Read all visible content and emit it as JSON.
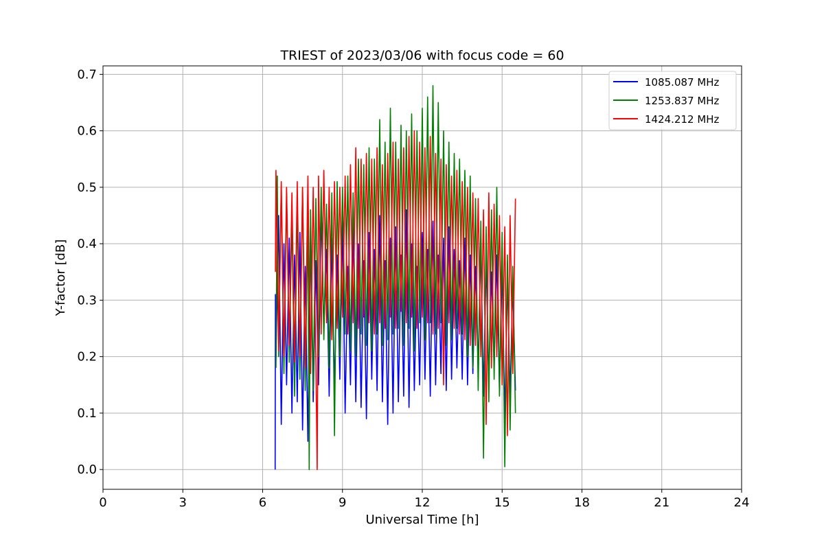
{
  "chart_data": {
    "type": "line",
    "title": "TRIEST of 2023/03/06 with focus code = 60",
    "xlabel": "Universal Time [h]",
    "ylabel": "Y-factor [dB]",
    "xlim": [
      0,
      24
    ],
    "ylim": [
      -0.035,
      0.715
    ],
    "xticks": [
      0,
      3,
      6,
      9,
      12,
      15,
      18,
      21,
      24
    ],
    "xtick_labels": [
      "0",
      "3",
      "6",
      "9",
      "12",
      "15",
      "18",
      "21",
      "24"
    ],
    "yticks": [
      0.0,
      0.1,
      0.2,
      0.3,
      0.4,
      0.5,
      0.6,
      0.7
    ],
    "ytick_labels": [
      "0.0",
      "0.1",
      "0.2",
      "0.3",
      "0.4",
      "0.5",
      "0.6",
      "0.7"
    ],
    "grid": true,
    "legend_position": "top-right",
    "series": [
      {
        "name": "1085.087 MHz",
        "color": "#0000ff",
        "x": [
          6.47,
          6.48,
          6.5,
          6.6,
          6.7,
          6.8,
          6.9,
          7.0,
          7.1,
          7.2,
          7.3,
          7.4,
          7.5,
          7.6,
          7.7,
          7.8,
          7.9,
          8.0,
          8.1,
          8.2,
          8.3,
          8.4,
          8.5,
          8.6,
          8.7,
          8.8,
          8.9,
          9.0,
          9.1,
          9.2,
          9.3,
          9.4,
          9.5,
          9.6,
          9.7,
          9.8,
          9.9,
          10.0,
          10.1,
          10.2,
          10.3,
          10.4,
          10.5,
          10.6,
          10.7,
          10.8,
          10.9,
          11.0,
          11.1,
          11.2,
          11.3,
          11.4,
          11.5,
          11.6,
          11.7,
          11.8,
          11.9,
          12.0,
          12.1,
          12.2,
          12.3,
          12.4,
          12.5,
          12.6,
          12.7,
          12.8,
          12.9,
          13.0,
          13.1,
          13.2,
          13.3,
          13.4,
          13.5,
          13.6,
          13.7,
          13.8,
          13.9,
          14.0,
          14.1,
          14.2,
          14.3,
          14.4,
          14.5,
          14.6,
          14.7,
          14.8,
          14.9,
          15.0,
          15.1,
          15.2,
          15.3,
          15.4,
          15.5
        ],
        "y": [
          0.0,
          0.31,
          0.2,
          0.45,
          0.08,
          0.4,
          0.15,
          0.41,
          0.1,
          0.38,
          0.12,
          0.42,
          0.07,
          0.36,
          0.05,
          0.43,
          0.12,
          0.37,
          0.15,
          0.46,
          0.25,
          0.39,
          0.13,
          0.41,
          0.14,
          0.38,
          0.16,
          0.44,
          0.1,
          0.36,
          0.15,
          0.43,
          0.12,
          0.4,
          0.11,
          0.37,
          0.09,
          0.42,
          0.16,
          0.39,
          0.14,
          0.45,
          0.12,
          0.37,
          0.08,
          0.41,
          0.1,
          0.43,
          0.12,
          0.38,
          0.13,
          0.46,
          0.11,
          0.4,
          0.14,
          0.36,
          0.15,
          0.42,
          0.16,
          0.39,
          0.13,
          0.44,
          0.15,
          0.38,
          0.17,
          0.41,
          0.14,
          0.43,
          0.16,
          0.39,
          0.18,
          0.37,
          0.16,
          0.41,
          0.15,
          0.38,
          0.17,
          0.36,
          0.18,
          0.4,
          0.13,
          0.37,
          0.16,
          0.35,
          0.18,
          0.38,
          0.14,
          0.36,
          0.09,
          0.34,
          0.13,
          0.33,
          0.14
        ]
      },
      {
        "name": "1253.837 MHz",
        "color": "#008000",
        "x": [
          6.5,
          6.55,
          6.6,
          6.7,
          6.8,
          6.9,
          7.0,
          7.1,
          7.2,
          7.3,
          7.4,
          7.5,
          7.6,
          7.7,
          7.75,
          7.8,
          7.9,
          8.0,
          8.1,
          8.2,
          8.3,
          8.4,
          8.5,
          8.6,
          8.7,
          8.8,
          8.9,
          9.0,
          9.1,
          9.2,
          9.3,
          9.4,
          9.5,
          9.6,
          9.7,
          9.8,
          9.9,
          10.0,
          10.1,
          10.2,
          10.3,
          10.4,
          10.5,
          10.6,
          10.7,
          10.8,
          10.9,
          11.0,
          11.1,
          11.2,
          11.3,
          11.4,
          11.5,
          11.6,
          11.7,
          11.8,
          11.9,
          12.0,
          12.1,
          12.2,
          12.3,
          12.4,
          12.5,
          12.6,
          12.7,
          12.8,
          12.9,
          13.0,
          13.1,
          13.2,
          13.3,
          13.4,
          13.5,
          13.6,
          13.7,
          13.8,
          13.9,
          14.0,
          14.1,
          14.2,
          14.3,
          14.4,
          14.5,
          14.6,
          14.7,
          14.8,
          14.9,
          15.0,
          15.1,
          15.2,
          15.3,
          15.4,
          15.5
        ],
        "y": [
          0.18,
          0.52,
          0.2,
          0.5,
          0.17,
          0.49,
          0.19,
          0.45,
          0.13,
          0.47,
          0.16,
          0.5,
          0.14,
          0.45,
          0.0,
          0.46,
          0.14,
          0.48,
          0.2,
          0.5,
          0.23,
          0.47,
          0.18,
          0.49,
          0.06,
          0.51,
          0.2,
          0.5,
          0.24,
          0.52,
          0.21,
          0.49,
          0.2,
          0.55,
          0.24,
          0.54,
          0.22,
          0.57,
          0.21,
          0.55,
          0.24,
          0.62,
          0.22,
          0.58,
          0.23,
          0.64,
          0.24,
          0.58,
          0.25,
          0.61,
          0.22,
          0.6,
          0.25,
          0.63,
          0.21,
          0.6,
          0.26,
          0.64,
          0.23,
          0.66,
          0.26,
          0.68,
          0.24,
          0.65,
          0.26,
          0.6,
          0.22,
          0.58,
          0.23,
          0.56,
          0.25,
          0.55,
          0.24,
          0.53,
          0.2,
          0.52,
          0.18,
          0.48,
          0.14,
          0.44,
          0.02,
          0.43,
          0.12,
          0.46,
          0.16,
          0.5,
          0.13,
          0.42,
          0.005,
          0.38,
          0.07,
          0.36,
          0.1
        ]
      },
      {
        "name": "1424.212 MHz",
        "color": "#ff0000",
        "x": [
          6.48,
          6.5,
          6.6,
          6.7,
          6.8,
          6.9,
          7.0,
          7.1,
          7.2,
          7.3,
          7.4,
          7.5,
          7.6,
          7.7,
          7.8,
          7.9,
          8.0,
          8.05,
          8.1,
          8.2,
          8.3,
          8.4,
          8.5,
          8.6,
          8.7,
          8.8,
          8.9,
          9.0,
          9.1,
          9.2,
          9.3,
          9.4,
          9.5,
          9.6,
          9.7,
          9.8,
          9.9,
          10.0,
          10.1,
          10.2,
          10.3,
          10.4,
          10.5,
          10.6,
          10.7,
          10.8,
          10.9,
          11.0,
          11.1,
          11.2,
          11.3,
          11.4,
          11.5,
          11.6,
          11.7,
          11.8,
          11.9,
          12.0,
          12.1,
          12.2,
          12.3,
          12.4,
          12.5,
          12.6,
          12.7,
          12.8,
          12.9,
          13.0,
          13.1,
          13.2,
          13.3,
          13.4,
          13.5,
          13.6,
          13.7,
          13.8,
          13.9,
          14.0,
          14.1,
          14.2,
          14.3,
          14.4,
          14.5,
          14.6,
          14.7,
          14.8,
          14.9,
          15.0,
          15.1,
          15.2,
          15.3,
          15.4,
          15.5
        ],
        "y": [
          0.35,
          0.53,
          0.21,
          0.51,
          0.2,
          0.5,
          0.22,
          0.49,
          0.19,
          0.51,
          0.2,
          0.5,
          0.18,
          0.52,
          0.17,
          0.5,
          0.19,
          0.0,
          0.52,
          0.24,
          0.53,
          0.26,
          0.5,
          0.23,
          0.51,
          0.25,
          0.5,
          0.27,
          0.52,
          0.24,
          0.54,
          0.26,
          0.57,
          0.25,
          0.55,
          0.27,
          0.56,
          0.26,
          0.55,
          0.24,
          0.57,
          0.26,
          0.54,
          0.25,
          0.56,
          0.27,
          0.58,
          0.25,
          0.55,
          0.28,
          0.57,
          0.26,
          0.59,
          0.27,
          0.6,
          0.25,
          0.58,
          0.27,
          0.57,
          0.26,
          0.59,
          0.24,
          0.56,
          0.25,
          0.55,
          0.15,
          0.54,
          0.26,
          0.52,
          0.25,
          0.53,
          0.24,
          0.51,
          0.23,
          0.5,
          0.22,
          0.49,
          0.22,
          0.48,
          0.2,
          0.46,
          0.08,
          0.49,
          0.18,
          0.47,
          0.2,
          0.45,
          0.15,
          0.43,
          0.06,
          0.45,
          0.17,
          0.48
        ]
      }
    ]
  }
}
